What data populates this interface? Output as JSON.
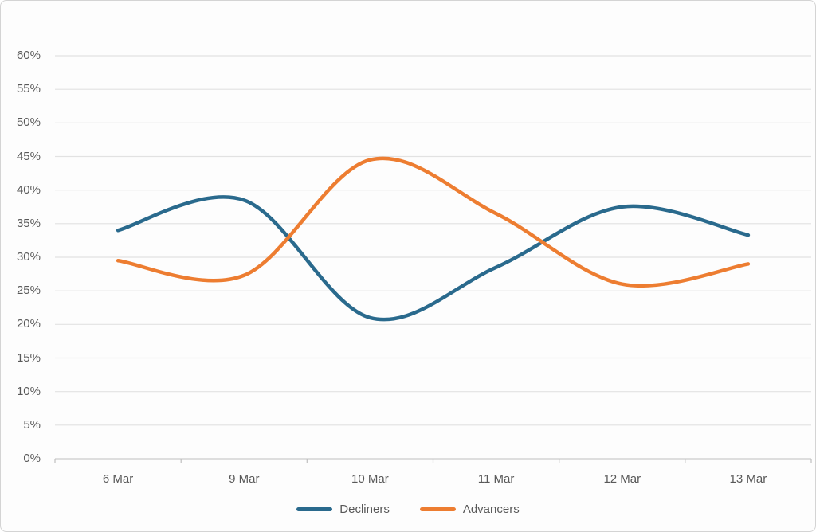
{
  "chart_data": {
    "type": "line",
    "title": "",
    "xlabel": "",
    "ylabel": "",
    "categories": [
      "6 Mar",
      "9 Mar",
      "10 Mar",
      "11 Mar",
      "12 Mar",
      "13 Mar"
    ],
    "series": [
      {
        "name": "Decliners",
        "color": "#2A6A8D",
        "values": [
          34,
          38.5,
          21,
          28.5,
          37.5,
          33.3
        ]
      },
      {
        "name": "Advancers",
        "color": "#ED7D31",
        "values": [
          29.5,
          27.3,
          44.5,
          36.5,
          26,
          29
        ]
      }
    ],
    "ylim": [
      0,
      60
    ],
    "y_tick_step": 5,
    "y_tick_labels": [
      "0%",
      "5%",
      "10%",
      "15%",
      "20%",
      "25%",
      "30%",
      "35%",
      "40%",
      "45%",
      "50%",
      "55%",
      "60%"
    ],
    "grid": "horizontal",
    "line_style": "smooth",
    "legend_position": "bottom"
  },
  "colors": {
    "gridline": "#E2E2E2",
    "axis_line": "#D3D3D3",
    "tick_mark": "#BFBFBF",
    "label_text": "#595959",
    "background": "#FDFDFD",
    "border": "#D4D4D4"
  }
}
